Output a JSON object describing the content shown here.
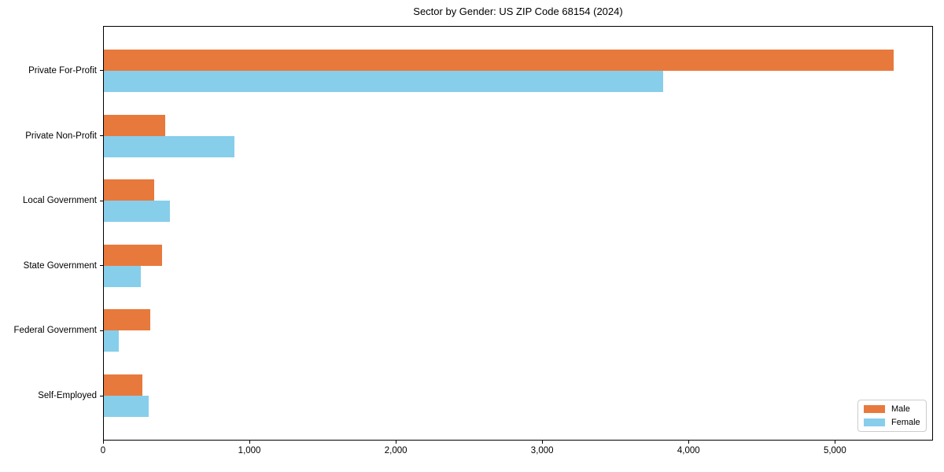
{
  "chart_data": {
    "type": "bar",
    "orientation": "horizontal",
    "title": "Sector by Gender: US ZIP Code 68154 (2024)",
    "xlabel": "",
    "ylabel": "",
    "categories": [
      "Private For-Profit",
      "Private Non-Profit",
      "Local Government",
      "State Government",
      "Federal Government",
      "Self-Employed"
    ],
    "series": [
      {
        "name": "Male",
        "color": "#E8793C",
        "values": [
          5400,
          425,
          350,
          405,
          325,
          270
        ]
      },
      {
        "name": "Female",
        "color": "#87CEEB",
        "values": [
          3825,
          900,
          455,
          260,
          110,
          310
        ]
      }
    ],
    "xlim": [
      0,
      5670
    ],
    "xticks": [
      0,
      1000,
      2000,
      3000,
      4000,
      5000
    ],
    "xtick_labels": [
      "0",
      "1,000",
      "2,000",
      "3,000",
      "4,000",
      "5,000"
    ],
    "grid": false,
    "legend_position": "lower right",
    "legend_border_color": "#cccccc",
    "axis_color": "#000000",
    "background_color": "#ffffff"
  }
}
